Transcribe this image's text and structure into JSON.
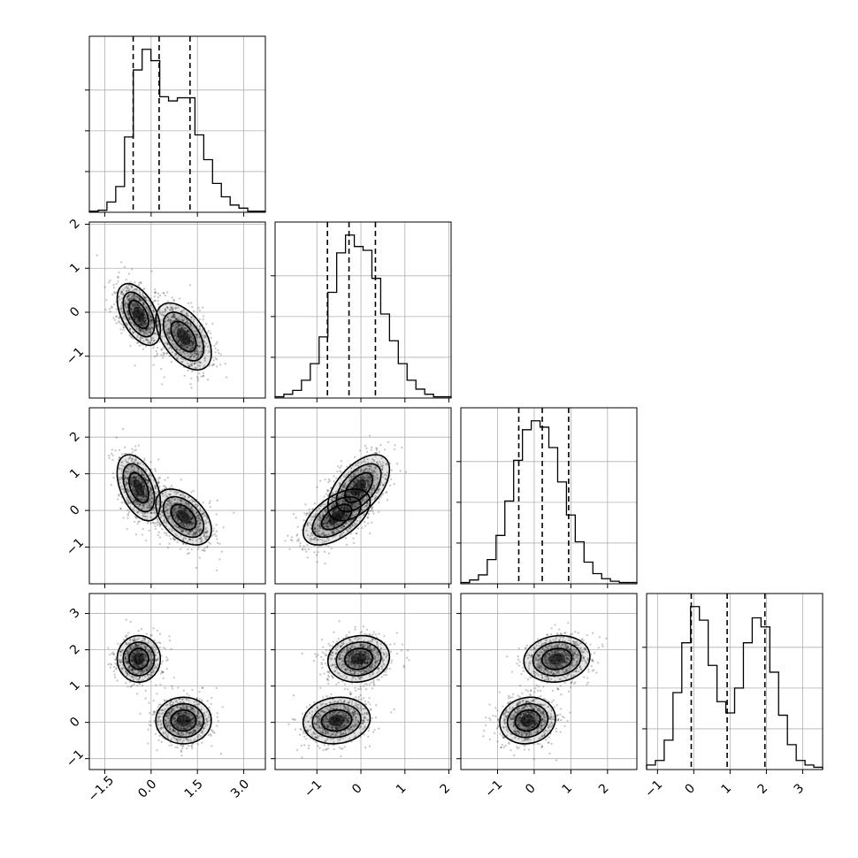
{
  "chart_data": {
    "type": "scatter",
    "title": "",
    "grid": true,
    "parameters": [
      {
        "index": 0,
        "range": [
          -2.0,
          3.7
        ],
        "ticks": [
          -1.5,
          0.0,
          1.5,
          3.0
        ],
        "tick_labels": [
          "−1.5",
          "0.0",
          "1.5",
          "3.0"
        ],
        "quantiles": [
          -0.58,
          0.26,
          1.26
        ]
      },
      {
        "index": 1,
        "range": [
          -1.95,
          2.05
        ],
        "ticks": [
          -1,
          0,
          1,
          2
        ],
        "tick_labels": [
          "−1",
          "0",
          "1",
          "2"
        ],
        "quantiles": [
          -0.76,
          -0.27,
          0.33
        ]
      },
      {
        "index": 2,
        "range": [
          -2.0,
          2.8
        ],
        "ticks": [
          -1,
          0,
          1,
          2
        ],
        "tick_labels": [
          "−1",
          "0",
          "1",
          "2"
        ],
        "quantiles": [
          -0.42,
          0.22,
          0.94
        ]
      },
      {
        "index": 3,
        "range": [
          -1.3,
          3.55
        ],
        "ticks": [
          -1,
          0,
          1,
          2,
          3
        ],
        "tick_labels": [
          "−1",
          "0",
          "1",
          "2",
          "3"
        ],
        "quantiles": [
          -0.07,
          0.92,
          1.96
        ]
      }
    ],
    "histograms": [
      {
        "param": 0,
        "counts": [
          1,
          2,
          10,
          25,
          73,
          138,
          158,
          147,
          112,
          108,
          111,
          111,
          75,
          51,
          28,
          15,
          7,
          4,
          1,
          1
        ]
      },
      {
        "param": 1,
        "counts": [
          1,
          3,
          6,
          14,
          27,
          48,
          83,
          114,
          128,
          119,
          116,
          94,
          66,
          45,
          27,
          14,
          7,
          3,
          1,
          1
        ]
      },
      {
        "param": 2,
        "counts": [
          1,
          3,
          7,
          19,
          38,
          65,
          97,
          121,
          128,
          123,
          107,
          80,
          54,
          33,
          17,
          8,
          4,
          2,
          1,
          1
        ]
      },
      {
        "param": 3,
        "counts": [
          2,
          4,
          13,
          34,
          56,
          72,
          66,
          46,
          30,
          25,
          36,
          56,
          67,
          63,
          43,
          24,
          11,
          4,
          2,
          1
        ]
      }
    ],
    "components": [
      {
        "weight": 0.5,
        "mean": [
          -0.4,
          -0.05,
          0.62,
          1.75
        ],
        "sd": [
          0.35,
          0.35,
          0.45,
          0.32
        ]
      },
      {
        "weight": 0.5,
        "mean": [
          1.05,
          -0.55,
          -0.18,
          0.05
        ],
        "sd": [
          0.45,
          0.38,
          0.38,
          0.32
        ]
      }
    ],
    "pair_correlations": {
      "1-0": -0.5,
      "2-0": -0.45,
      "2-1": 0.55,
      "3-0": 0.0,
      "3-1": 0.1,
      "3-2": 0.1
    },
    "contour_levels": [
      0.5,
      1.0,
      1.5
    ]
  }
}
